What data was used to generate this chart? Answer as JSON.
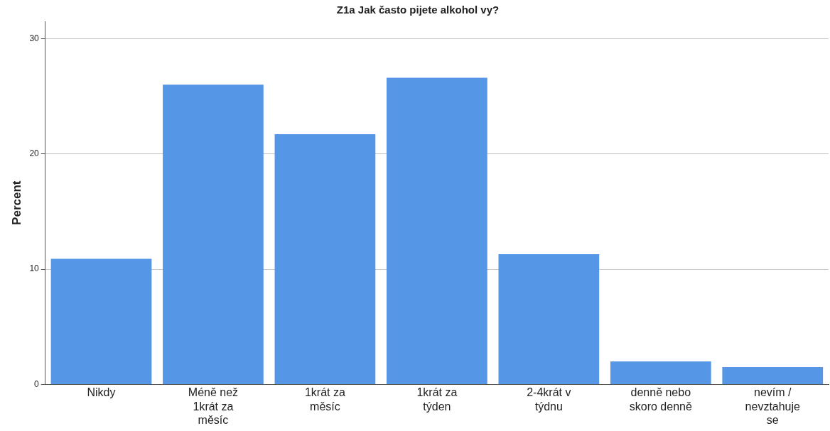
{
  "chart_data": {
    "type": "bar",
    "title": "Z1a Jak často pijete alkohol vy?",
    "ylabel": "Percent",
    "categories": [
      "Nikdy",
      "Méně než 1krát za měsíc",
      "1krát za měsíc",
      "1krát za týden",
      "2-4krát v týdnu",
      "denně nebo skoro denně",
      "nevím / nevztahuje se"
    ],
    "values": [
      10.9,
      26.0,
      21.7,
      26.6,
      11.3,
      2.0,
      1.5
    ],
    "color": "#5596e6",
    "ylim": [
      0,
      31.5
    ],
    "yticks": [
      0,
      10,
      20,
      30
    ],
    "grid": "y",
    "legend": false
  }
}
